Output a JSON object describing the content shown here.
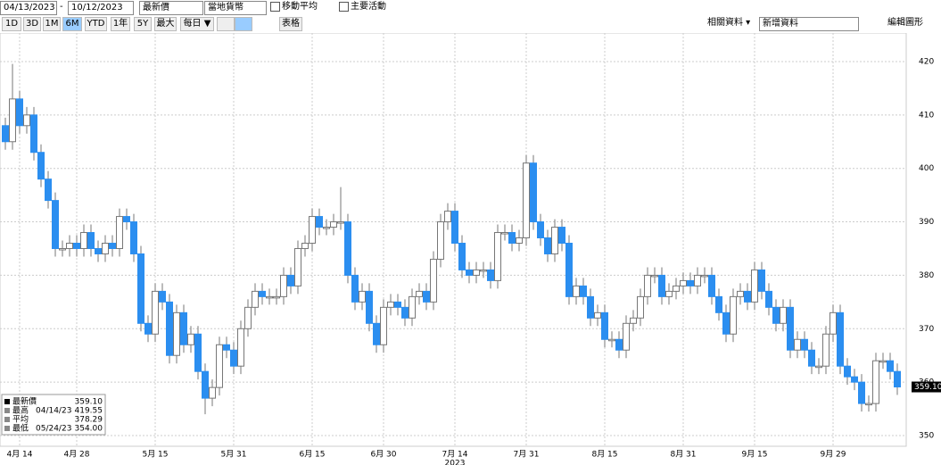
{
  "toolbar": {
    "start_date": "04/13/2023",
    "date_separator": "-",
    "end_date": "10/12/2023",
    "price_field": "最新價",
    "currency": "當地貨幣",
    "moving_average": "移動平均",
    "key_events": "主要活動",
    "ranges": [
      "1D",
      "3D",
      "1M",
      "6M",
      "YTD",
      "1年",
      "5Y",
      "最大"
    ],
    "active_range": "6M",
    "frequency": "每日 ▼",
    "table": "表格",
    "related": "相關資料 ▾",
    "add_data": "新增資料",
    "edit_chart": "編輯圖形"
  },
  "chart_data": {
    "type": "candlestick",
    "categories": [
      null,
      null,
      "4月 14",
      null,
      null,
      null,
      null,
      null,
      null,
      null,
      "4月 28",
      null,
      null,
      null,
      null,
      null,
      null,
      null,
      null,
      null,
      null,
      "5月 15",
      null,
      null,
      null,
      null,
      null,
      null,
      null,
      null,
      null,
      null,
      "5月 31",
      null,
      null,
      null,
      null,
      null,
      null,
      null,
      null,
      null,
      null,
      "6月 15",
      null,
      null,
      null,
      null,
      null,
      null,
      null,
      null,
      null,
      "6月 30",
      null,
      null,
      null,
      null,
      null,
      null,
      null,
      null,
      null,
      "7月 14",
      null,
      null,
      null,
      null,
      null,
      null,
      null,
      null,
      null,
      "7月 31",
      null,
      null,
      null,
      null,
      null,
      null,
      null,
      null,
      null,
      null,
      "8月 15",
      null,
      null,
      null,
      null,
      null,
      null,
      null,
      null,
      null,
      null,
      "8月 31",
      null,
      null,
      null,
      null,
      null,
      null,
      null,
      null,
      null,
      "9月 15",
      null,
      null,
      null,
      null,
      null,
      null,
      null,
      null,
      null,
      null,
      "9月 29",
      null,
      null,
      null,
      null,
      null,
      null,
      null,
      null,
      null
    ],
    "open": [
      408,
      405,
      413,
      408,
      410,
      403,
      398,
      394,
      385,
      385,
      386,
      385,
      388,
      385,
      384,
      386,
      385,
      391,
      390,
      384,
      371,
      369,
      377,
      375,
      365,
      373,
      367,
      369,
      362,
      357,
      359,
      367,
      366,
      363,
      370,
      374,
      377,
      376,
      376,
      376,
      380,
      378,
      385,
      386,
      391,
      389,
      389,
      390,
      390,
      380,
      375,
      377,
      371,
      367,
      374,
      375,
      374,
      372,
      376,
      377,
      375,
      383,
      390,
      392,
      386,
      381,
      380,
      381,
      381,
      379,
      388,
      388,
      386,
      387,
      401,
      390,
      387,
      384,
      389,
      386,
      376,
      378,
      376,
      372,
      373,
      368,
      368,
      366,
      371,
      372,
      376,
      380,
      380,
      376,
      377,
      378,
      379,
      378,
      380,
      380,
      376,
      373,
      369,
      376,
      377,
      375,
      381,
      377,
      374,
      371,
      374,
      366,
      368,
      366,
      363,
      363,
      369,
      373,
      363,
      361,
      360,
      356,
      356,
      364,
      364,
      362
    ],
    "high": [
      409.5,
      419.55,
      414.5,
      411.5,
      411.5,
      404.5,
      399.5,
      395.5,
      386.5,
      387.5,
      387.5,
      389.5,
      389.5,
      386.5,
      387.5,
      387.5,
      392.5,
      392.5,
      391.5,
      385.5,
      372.5,
      378.5,
      378.5,
      376.5,
      374.5,
      374.5,
      370.5,
      370.5,
      363.5,
      360.5,
      368.5,
      368.5,
      367.5,
      371.5,
      375.5,
      378.5,
      378.5,
      377.5,
      377.5,
      381.5,
      381.5,
      386.5,
      387.5,
      392.5,
      392.5,
      390.5,
      391.5,
      396.5,
      391.5,
      381.5,
      378.5,
      378.5,
      372.5,
      375.5,
      376.5,
      376.5,
      375.5,
      377.5,
      378.5,
      378.5,
      384.5,
      391.5,
      393.5,
      393.5,
      387.5,
      382.5,
      382.5,
      382.5,
      382.5,
      389.5,
      389.5,
      389.5,
      388.5,
      402.5,
      402.5,
      391.5,
      388.5,
      390.5,
      390.5,
      387.5,
      379.5,
      379.5,
      377.5,
      374.5,
      374.5,
      369.5,
      369.5,
      372.5,
      373.5,
      377.5,
      381.5,
      381.5,
      381.5,
      378.5,
      379.5,
      380.5,
      380.5,
      381.5,
      381.5,
      381.5,
      377.5,
      374.5,
      377.5,
      378.5,
      378.5,
      382.5,
      382.5,
      378.5,
      375.5,
      375.5,
      375.5,
      369.5,
      369.5,
      367.5,
      364.5,
      370.5,
      374.5,
      374.5,
      364.5,
      362.5,
      361.5,
      357.5,
      365.5,
      365.5,
      365.5,
      363.5
    ],
    "low": [
      403.5,
      403.5,
      406.5,
      406.5,
      401.5,
      396.5,
      392.5,
      383.5,
      383.5,
      383.5,
      383.5,
      383.5,
      383.5,
      382.5,
      382.5,
      383.5,
      383.5,
      388.5,
      382.5,
      369.5,
      367.5,
      367.5,
      373.5,
      363.5,
      363.5,
      365.5,
      365.5,
      360.5,
      354,
      355.5,
      357.5,
      364.5,
      361.5,
      361.5,
      368.5,
      372.5,
      374.5,
      374.5,
      374.5,
      374.5,
      376.5,
      376.5,
      383.5,
      384.5,
      387.5,
      387.5,
      387.5,
      388.5,
      378.5,
      373.5,
      373.5,
      369.5,
      365.5,
      365.5,
      372.5,
      372.5,
      370.5,
      370.5,
      374.5,
      373.5,
      373.5,
      381.5,
      388.5,
      384.5,
      379.5,
      378.5,
      378.5,
      379.5,
      377.5,
      377.5,
      386.5,
      384.5,
      384.5,
      385.5,
      388.5,
      385.5,
      382.5,
      382.5,
      384.5,
      374.5,
      374.5,
      374.5,
      370.5,
      370.5,
      366.5,
      366.5,
      364.5,
      364.5,
      369.5,
      370.5,
      374.5,
      378.5,
      374.5,
      374.5,
      375.5,
      376.5,
      376.5,
      376.5,
      378.5,
      374.5,
      371.5,
      367.5,
      367.5,
      374.5,
      373.5,
      373.5,
      375.5,
      372.5,
      369.5,
      369.5,
      364.5,
      364.5,
      364.5,
      361.5,
      361.5,
      361.5,
      367.5,
      361.5,
      359.5,
      358.5,
      354.5,
      354.5,
      354.5,
      362.5,
      360.5,
      357.6
    ],
    "close": [
      405,
      413,
      408,
      410,
      403,
      398,
      394,
      385,
      385,
      386,
      385,
      388,
      385,
      384,
      386,
      385,
      391,
      390,
      384,
      371,
      369,
      377,
      375,
      365,
      373,
      367,
      369,
      362,
      357,
      359,
      367,
      366,
      363,
      370,
      374,
      377,
      376,
      376,
      376,
      380,
      378,
      385,
      386,
      391,
      389,
      389,
      390,
      390,
      380,
      375,
      377,
      371,
      367,
      374,
      375,
      374,
      372,
      376,
      377,
      375,
      383,
      390,
      392,
      386,
      381,
      380,
      381,
      381,
      379,
      388,
      388,
      386,
      387,
      401,
      390,
      387,
      384,
      389,
      386,
      376,
      378,
      376,
      372,
      373,
      368,
      368,
      366,
      371,
      372,
      376,
      380,
      380,
      376,
      377,
      378,
      379,
      378,
      380,
      380,
      376,
      373,
      369,
      376,
      377,
      375,
      381,
      377,
      374,
      371,
      374,
      366,
      368,
      366,
      363,
      363,
      369,
      373,
      363,
      361,
      360,
      356,
      356,
      364,
      364,
      362,
      359.1
    ],
    "last_value_label": "359.10",
    "x_year": "2023",
    "ylim": [
      348,
      423.5
    ],
    "yticks": [
      350,
      360,
      370,
      380,
      390,
      400,
      410,
      420
    ],
    "up_color": "#ffffff",
    "down_color": "#2b8ef0",
    "grid": true,
    "legend": [
      {
        "label": "最新價",
        "date": null,
        "value": "359.10"
      },
      {
        "label": "最高",
        "date": "04/14/23",
        "value": "419.55"
      },
      {
        "label": "平均",
        "date": null,
        "value": "378.29"
      },
      {
        "label": "最低",
        "date": "05/24/23",
        "value": "354.00"
      }
    ]
  }
}
